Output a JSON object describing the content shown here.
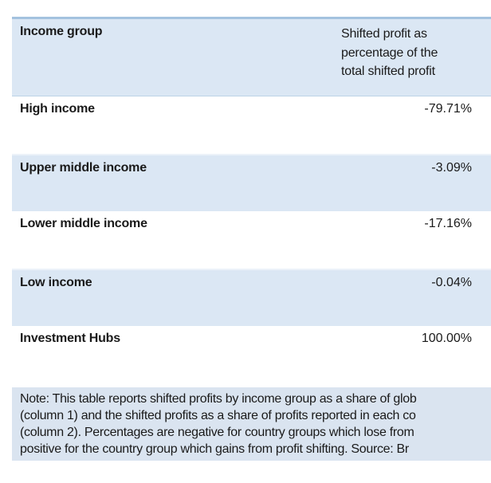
{
  "table": {
    "header": {
      "col1": "Income group",
      "col2_line1": "Shifted profit as",
      "col2_line2": "percentage of the",
      "col2_line3": "total shifted profit"
    },
    "rows": [
      {
        "label": "High income",
        "value": "-79.71%"
      },
      {
        "label": "Upper middle income",
        "value": "-3.09%"
      },
      {
        "label": "Lower middle income",
        "value": "-17.16%"
      },
      {
        "label": "Low income",
        "value": "-0.04%"
      },
      {
        "label": "Investment Hubs",
        "value": "100.00%"
      }
    ]
  },
  "note": {
    "line1": "Note: This table reports shifted profits by income group as a share of glob",
    "line2": "(column 1) and the shifted profits as a share of profits reported in each co",
    "line3": "(column 2). Percentages are negative for country groups which lose from",
    "line4": "positive for the country group which gains from profit shifting. Source: Br"
  },
  "colors": {
    "table_accent_border": "#a3c2df",
    "table_fill_blue": "#dbe7f4",
    "note_fill_blue": "#dae4f0",
    "text": "#1a1a1a"
  },
  "chart_data": {
    "type": "table",
    "title": "Shifted profit as percentage of the total shifted profit",
    "categories": [
      "High income",
      "Upper middle income",
      "Lower middle income",
      "Low income",
      "Investment Hubs"
    ],
    "values": [
      -79.71,
      -3.09,
      -17.16,
      -0.04,
      100.0
    ],
    "unit": "%"
  }
}
